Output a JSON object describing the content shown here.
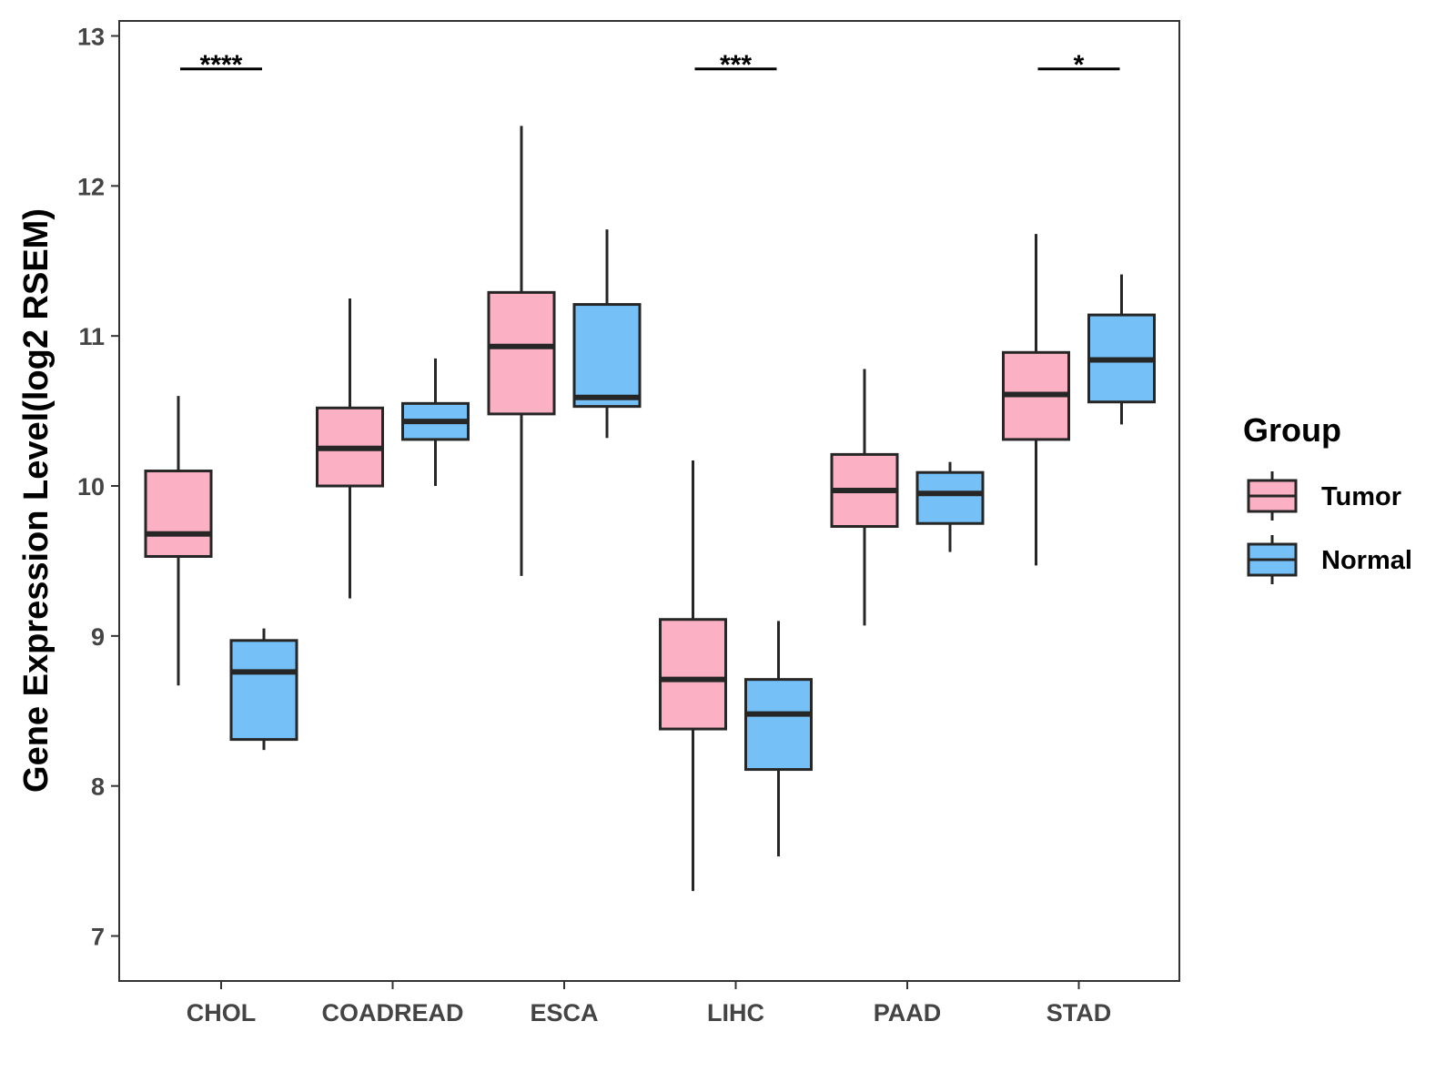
{
  "chart_data": {
    "type": "boxplot",
    "ylabel": "Gene Expression Level(log2 RSEM)",
    "xlabel": "",
    "ylim": [
      6.7,
      13.1
    ],
    "yticks": [
      7,
      8,
      9,
      10,
      11,
      12,
      13
    ],
    "categories": [
      "CHOL",
      "COADREAD",
      "ESCA",
      "LIHC",
      "PAAD",
      "STAD"
    ],
    "legend": {
      "title": "Group",
      "position": "right",
      "entries": [
        {
          "name": "Tumor",
          "color": "#FBB0C3"
        },
        {
          "name": "Normal",
          "color": "#74C0F7"
        }
      ]
    },
    "series": [
      {
        "name": "Tumor",
        "color": "#FBB0C3",
        "boxes": [
          {
            "min": 8.67,
            "q1": 9.53,
            "median": 9.68,
            "q3": 10.1,
            "max": 10.6
          },
          {
            "min": 9.25,
            "q1": 10.0,
            "median": 10.25,
            "q3": 10.52,
            "max": 11.25
          },
          {
            "min": 9.4,
            "q1": 10.48,
            "median": 10.93,
            "q3": 11.29,
            "max": 12.4
          },
          {
            "min": 7.3,
            "q1": 8.38,
            "median": 8.71,
            "q3": 9.11,
            "max": 10.17
          },
          {
            "min": 9.07,
            "q1": 9.73,
            "median": 9.97,
            "q3": 10.21,
            "max": 10.78
          },
          {
            "min": 9.47,
            "q1": 10.31,
            "median": 10.61,
            "q3": 10.89,
            "max": 11.68
          }
        ]
      },
      {
        "name": "Normal",
        "color": "#74C0F7",
        "boxes": [
          {
            "min": 8.24,
            "q1": 8.31,
            "median": 8.76,
            "q3": 8.97,
            "max": 9.05
          },
          {
            "min": 10.0,
            "q1": 10.31,
            "median": 10.43,
            "q3": 10.55,
            "max": 10.85
          },
          {
            "min": 10.32,
            "q1": 10.53,
            "median": 10.59,
            "q3": 11.21,
            "max": 11.71
          },
          {
            "min": 7.53,
            "q1": 8.11,
            "median": 8.48,
            "q3": 8.71,
            "max": 9.1
          },
          {
            "min": 9.56,
            "q1": 9.75,
            "median": 9.95,
            "q3": 10.09,
            "max": 10.16
          },
          {
            "min": 10.41,
            "q1": 10.56,
            "median": 10.84,
            "q3": 11.14,
            "max": 11.41
          }
        ]
      }
    ],
    "significance": [
      {
        "category": "CHOL",
        "label": "****",
        "y": 12.78
      },
      {
        "category": "LIHC",
        "label": "***",
        "y": 12.78
      },
      {
        "category": "STAD",
        "label": "*",
        "y": 12.78
      }
    ]
  }
}
